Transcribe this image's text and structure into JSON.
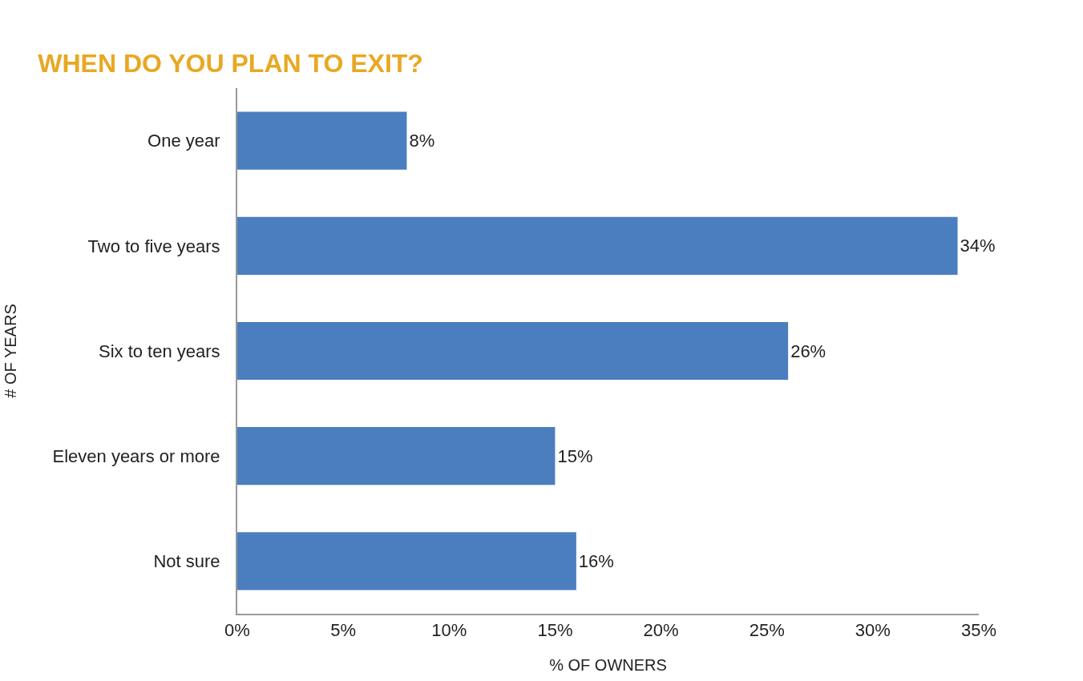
{
  "chart_data": {
    "type": "bar",
    "orientation": "horizontal",
    "title": "WHEN DO YOU PLAN TO EXIT?",
    "xlabel": "% OF OWNERS",
    "ylabel": "# OF YEARS",
    "categories": [
      "One year",
      "Two to five years",
      "Six to ten years",
      "Eleven years or more",
      "Not sure"
    ],
    "values": [
      8,
      34,
      26,
      15,
      16
    ],
    "color": "#4a7ebf",
    "data_labels": true,
    "value_labels": [
      "8%",
      "34%",
      "26%",
      "15%",
      "16%"
    ],
    "xlim": [
      0,
      35
    ],
    "xticks": [
      {
        "value": 0,
        "label": "0%"
      },
      {
        "value": 5,
        "label": "5%"
      },
      {
        "value": 10,
        "label": "10%"
      },
      {
        "value": 15,
        "label": "15%"
      },
      {
        "value": 20,
        "label": "20%"
      },
      {
        "value": 25,
        "label": "25%"
      },
      {
        "value": 30,
        "label": "30%"
      },
      {
        "value": 35,
        "label": "35%"
      }
    ],
    "tick_labels": "xy"
  }
}
